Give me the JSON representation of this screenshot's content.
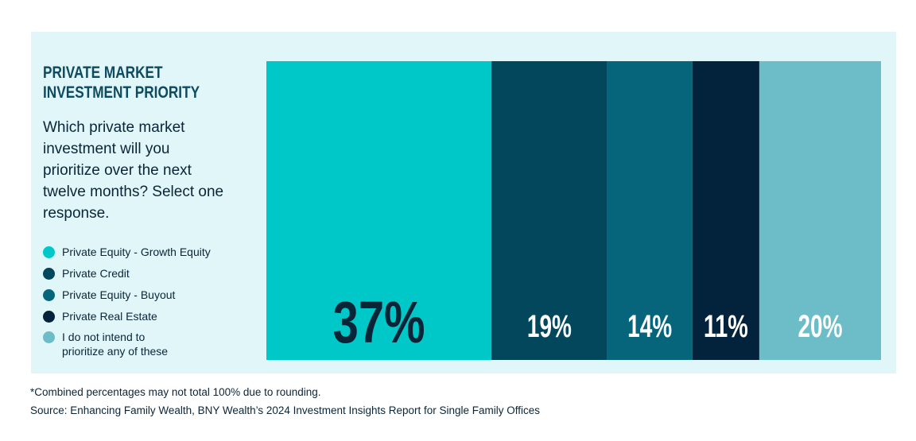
{
  "header": {
    "title_lines": [
      "PRIVATE MARKET",
      "INVESTMENT PRIORITY"
    ],
    "question": "Which private market investment will you prioritize over the next twelve months? Select one response."
  },
  "chart_data": {
    "type": "bar",
    "layout": "stacked-100",
    "title": "PRIVATE MARKET INVESTMENT PRIORITY",
    "series": [
      {
        "name": "Private Equity - Growth Equity",
        "value": 37,
        "label": "37%",
        "color": "#00c8c9",
        "label_color": "#0b2538"
      },
      {
        "name": "Private Credit",
        "value": 19,
        "label": "19%",
        "color": "#03475d",
        "label_color": "#ffffff"
      },
      {
        "name": "Private Equity - Buyout",
        "value": 14,
        "label": "14%",
        "color": "#06657b",
        "label_color": "#ffffff"
      },
      {
        "name": "Private Real Estate",
        "value": 11,
        "label": "11%",
        "color": "#03233c",
        "label_color": "#ffffff"
      },
      {
        "name": "I do not intend to prioritize any of these",
        "value": 20,
        "label": "20%",
        "color": "#6cbdc8",
        "label_color": "#ffffff"
      }
    ],
    "legend_position": "left",
    "grid": false
  },
  "legend": {
    "items": [
      {
        "lines": [
          "Private Equity - Growth Equity"
        ],
        "color": "#00c8c9"
      },
      {
        "lines": [
          "Private Credit"
        ],
        "color": "#03475d"
      },
      {
        "lines": [
          "Private Equity - Buyout"
        ],
        "color": "#06657b"
      },
      {
        "lines": [
          "Private Real Estate"
        ],
        "color": "#03233c"
      },
      {
        "lines": [
          "I do not intend to",
          "prioritize any of these"
        ],
        "color": "#6cbdc8"
      }
    ]
  },
  "footnotes": {
    "note": "*Combined percentages may not total 100% due to rounding.",
    "source": "Source: Enhancing Family Wealth, BNY Wealth’s 2024 Investment Insights Report for Single Family Offices"
  }
}
